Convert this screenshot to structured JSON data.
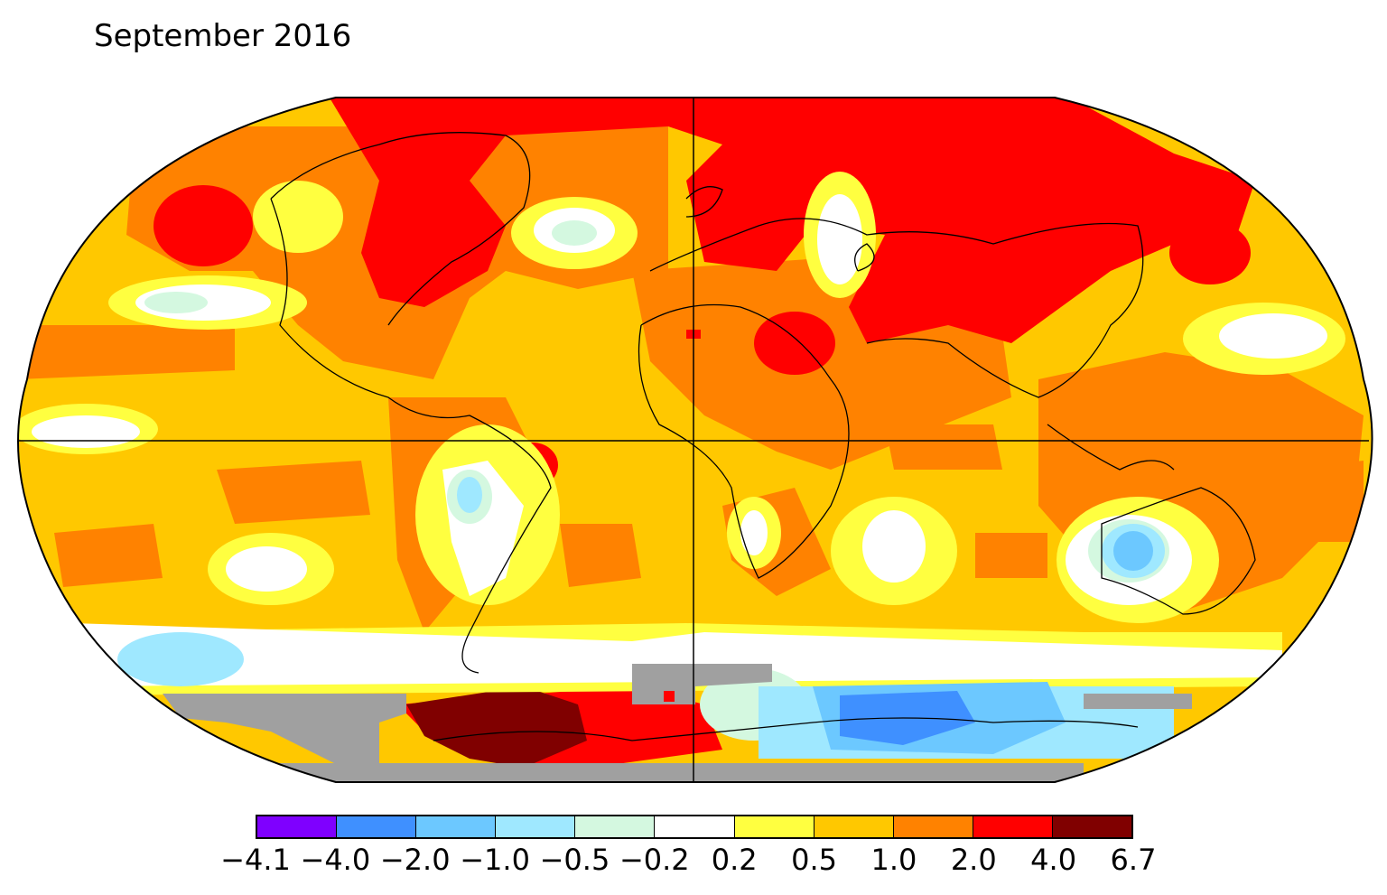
{
  "title": "September 2016",
  "legend": {
    "colors": [
      "#7f00ff",
      "#3f90ff",
      "#6cc8ff",
      "#9fe8ff",
      "#d4f8e0",
      "#ffffff",
      "#ffff40",
      "#ffc800",
      "#ff8200",
      "#ff0000",
      "#800000"
    ],
    "tick_labels": [
      "−4.1",
      "−4.0",
      "−2.0",
      "−1.0",
      "−0.5",
      "−0.2",
      "0.2",
      "0.5",
      "1.0",
      "2.0",
      "4.0",
      "6.7"
    ]
  },
  "missing_data_color": "#a0a0a0",
  "map": {
    "projection": "robinson",
    "variable": "temperature anomaly"
  }
}
